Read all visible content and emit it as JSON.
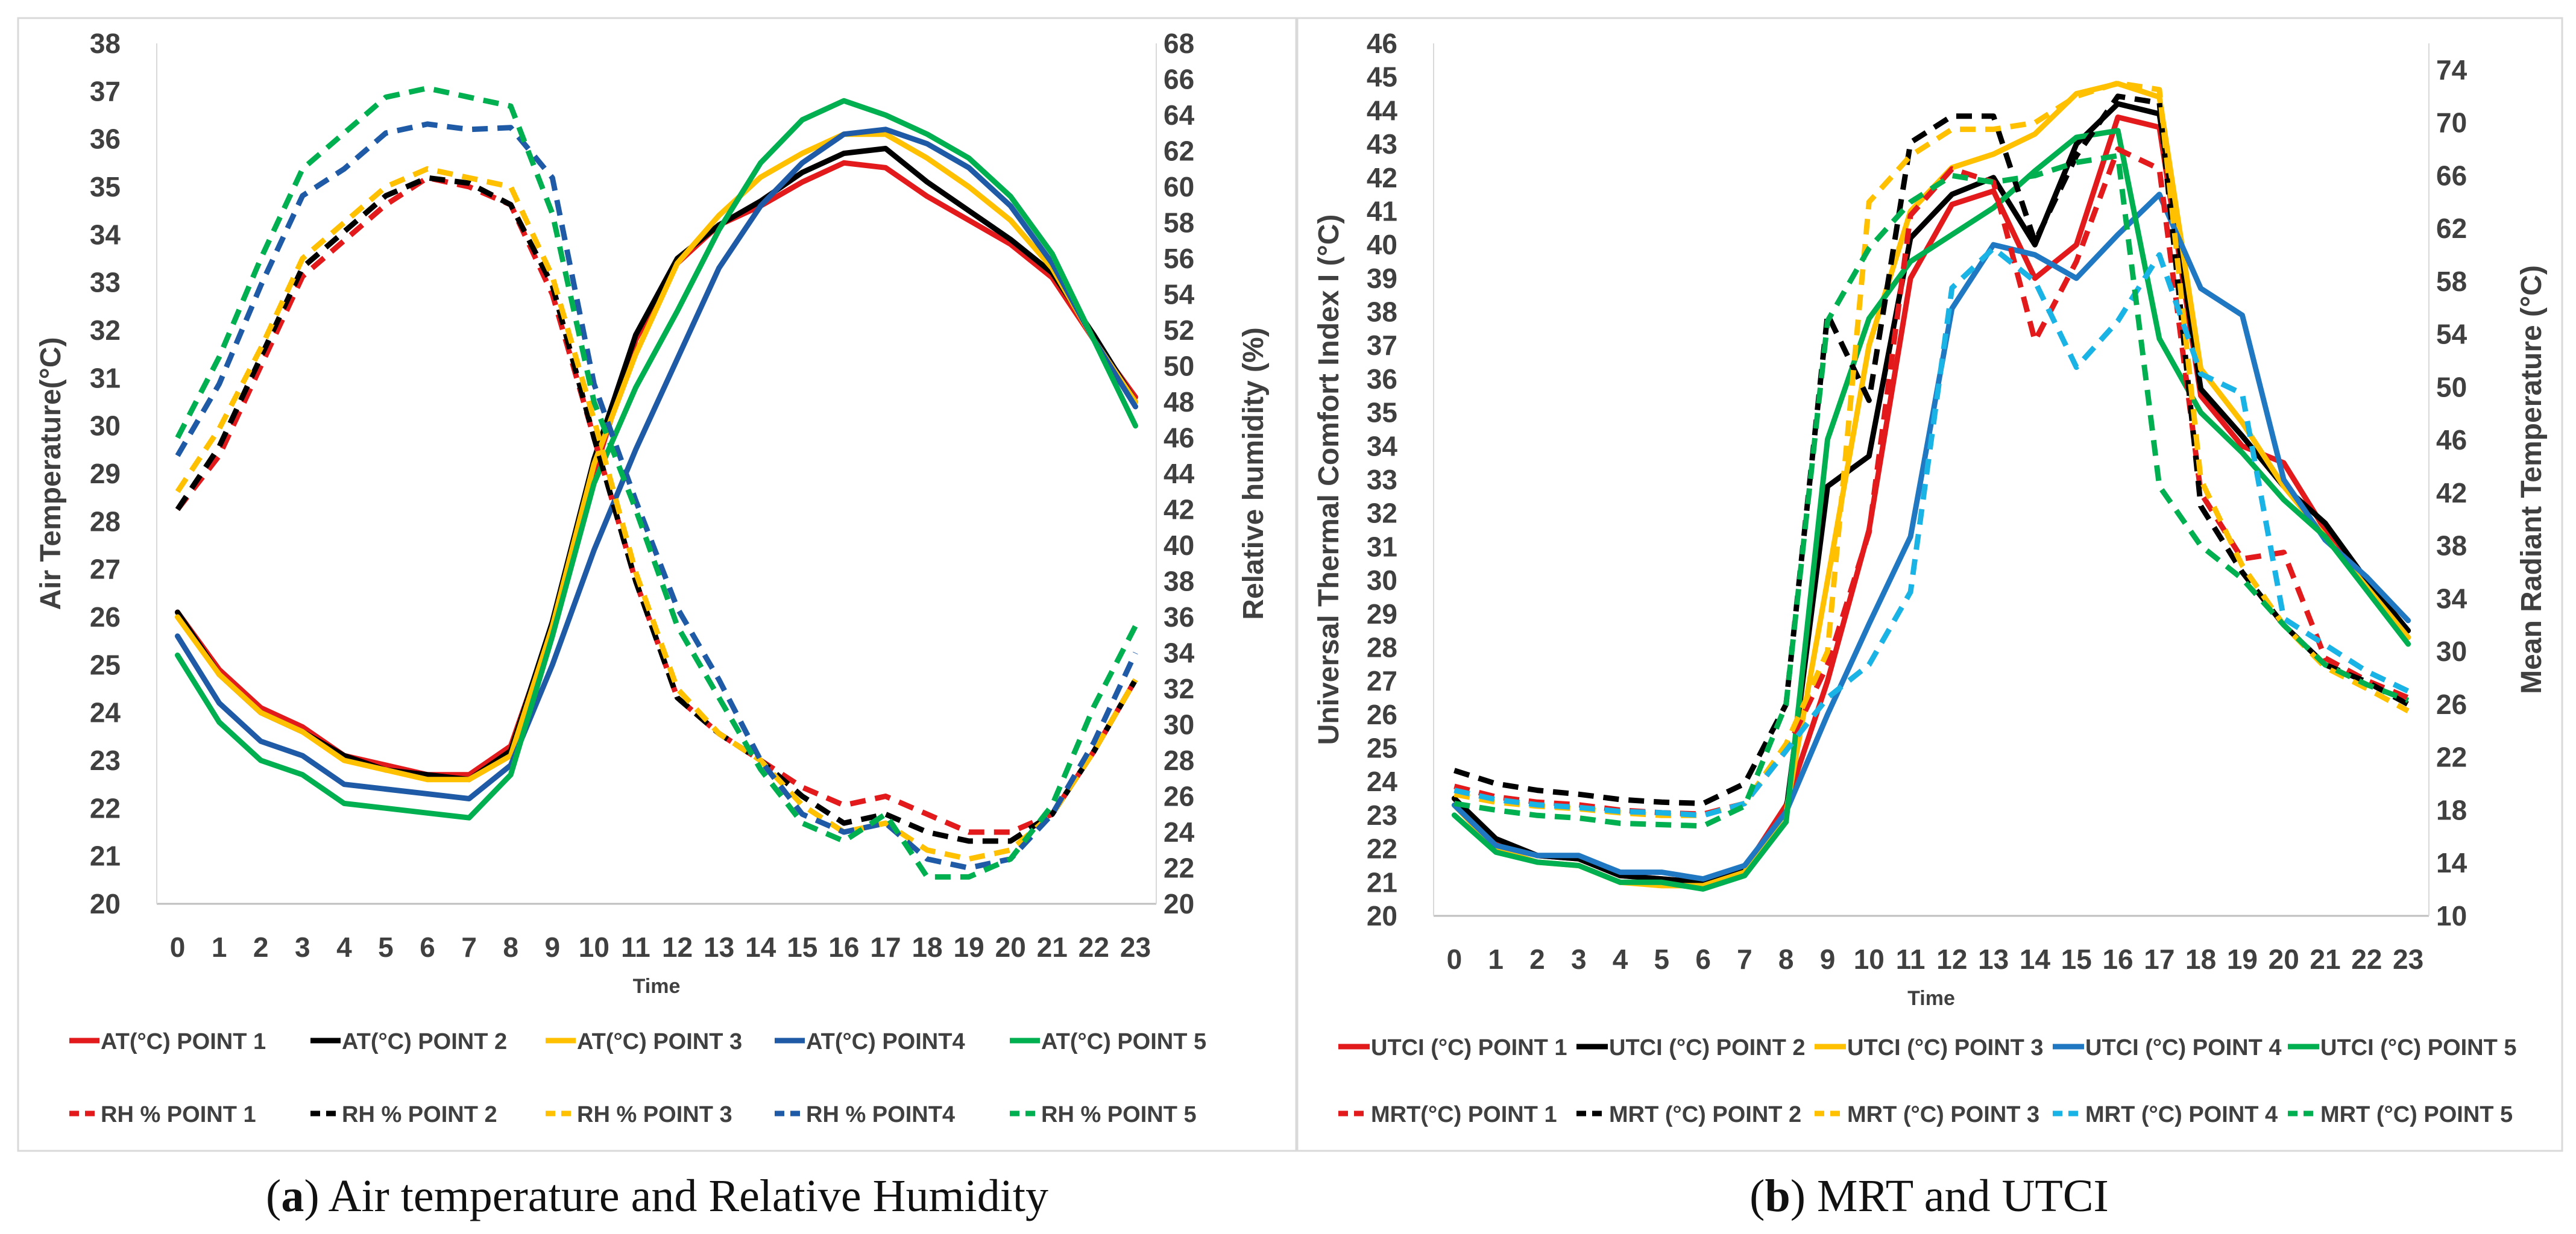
{
  "chart_data": [
    {
      "type": "line",
      "caption_letter": "a",
      "caption_text": " Air temperature and Relative Humidity",
      "xlabel": "Time",
      "ylabel": "Air Temperature(°C)",
      "y2label": "Relative humidity (%)",
      "x": [
        0,
        1,
        2,
        3,
        4,
        5,
        6,
        7,
        8,
        9,
        10,
        11,
        12,
        13,
        14,
        15,
        16,
        17,
        18,
        19,
        20,
        21,
        22,
        23
      ],
      "ylim": [
        20,
        38
      ],
      "y_ticks": [
        20,
        21,
        22,
        23,
        24,
        25,
        26,
        27,
        28,
        29,
        30,
        31,
        32,
        33,
        34,
        35,
        36,
        37,
        38
      ],
      "y2lim": [
        20,
        68
      ],
      "y2_ticks": [
        20,
        22,
        24,
        26,
        28,
        30,
        32,
        34,
        36,
        38,
        40,
        42,
        44,
        46,
        48,
        50,
        52,
        54,
        56,
        58,
        60,
        62,
        64,
        66,
        68
      ],
      "series": [
        {
          "name": "AT(°C) POINT 1",
          "axis": "y",
          "style": "solid",
          "color": "#e31a1c",
          "values": [
            26.1,
            24.9,
            24.1,
            23.7,
            23.1,
            22.9,
            22.7,
            22.7,
            23.3,
            25.8,
            29.0,
            31.8,
            33.4,
            34.2,
            34.6,
            35.1,
            35.5,
            35.4,
            34.8,
            34.3,
            33.8,
            33.1,
            31.8,
            30.6
          ]
        },
        {
          "name": "AT(°C) POINT 2",
          "axis": "y",
          "style": "solid",
          "color": "#000000",
          "values": [
            26.1,
            24.8,
            24.0,
            23.6,
            23.1,
            22.8,
            22.7,
            22.6,
            23.2,
            25.9,
            29.3,
            31.9,
            33.5,
            34.2,
            34.7,
            35.3,
            35.7,
            35.8,
            35.1,
            34.5,
            33.9,
            33.2,
            31.9,
            30.5
          ]
        },
        {
          "name": "AT(°C) POINT 3",
          "axis": "y",
          "style": "solid",
          "color": "#ffc000",
          "values": [
            26.0,
            24.8,
            24.0,
            23.6,
            23.0,
            22.8,
            22.6,
            22.6,
            23.1,
            25.8,
            29.2,
            31.5,
            33.4,
            34.4,
            35.2,
            35.7,
            36.1,
            36.1,
            35.6,
            35.0,
            34.3,
            33.3,
            31.8,
            30.5
          ]
        },
        {
          "name": "AT(°C) POINT4",
          "axis": "y",
          "style": "solid",
          "color": "#1f5aa6",
          "values": [
            25.6,
            24.2,
            23.4,
            23.1,
            22.5,
            22.4,
            22.3,
            22.2,
            22.9,
            25.0,
            27.4,
            29.5,
            31.4,
            33.3,
            34.6,
            35.5,
            36.1,
            36.2,
            35.9,
            35.4,
            34.6,
            33.4,
            31.8,
            30.4
          ]
        },
        {
          "name": "AT(°C) POINT 5",
          "axis": "y",
          "style": "solid",
          "color": "#00b050",
          "values": [
            25.2,
            23.8,
            23.0,
            22.7,
            22.1,
            22.0,
            21.9,
            21.8,
            22.7,
            25.6,
            28.8,
            30.8,
            32.4,
            34.1,
            35.5,
            36.4,
            36.8,
            36.5,
            36.1,
            35.6,
            34.8,
            33.6,
            31.8,
            30.0
          ]
        },
        {
          "name": "RH % POINT 1",
          "axis": "y2",
          "style": "dashed",
          "color": "#e31a1c",
          "values": [
            42.0,
            45.0,
            50.0,
            55.0,
            57.0,
            59.0,
            60.5,
            60.0,
            59.0,
            54.0,
            46.0,
            38.0,
            31.5,
            29.5,
            28.0,
            26.5,
            25.5,
            26.0,
            25.0,
            24.0,
            24.0,
            25.0,
            28.5,
            32.5
          ]
        },
        {
          "name": "RH % POINT 2",
          "axis": "y2",
          "style": "dashed",
          "color": "#000000",
          "values": [
            42.0,
            45.5,
            50.5,
            55.5,
            57.5,
            59.5,
            60.5,
            60.2,
            59.0,
            54.5,
            46.0,
            38.0,
            31.5,
            29.5,
            28.0,
            26.0,
            24.5,
            25.0,
            24.0,
            23.5,
            23.5,
            25.0,
            28.5,
            32.5
          ]
        },
        {
          "name": "RH % POINT 3",
          "axis": "y2",
          "style": "dashed",
          "color": "#ffc000",
          "values": [
            43.0,
            46.5,
            51.0,
            56.0,
            58.0,
            60.0,
            61.0,
            60.5,
            60.0,
            55.0,
            47.0,
            38.5,
            32.0,
            29.5,
            28.0,
            25.5,
            24.0,
            24.5,
            23.0,
            22.5,
            23.0,
            25.0,
            28.5,
            32.5
          ]
        },
        {
          "name": "RH % POINT4",
          "axis": "y2",
          "style": "dashed",
          "color": "#1f5aa6",
          "values": [
            45.0,
            49.0,
            54.5,
            59.5,
            61.0,
            63.0,
            63.5,
            63.2,
            63.3,
            60.5,
            49.0,
            42.5,
            36.5,
            32.5,
            28.0,
            25.0,
            24.0,
            24.5,
            22.5,
            22.0,
            22.5,
            25.0,
            29.0,
            34.0
          ]
        },
        {
          "name": "RH % POINT 5",
          "axis": "y2",
          "style": "dashed",
          "color": "#00b050",
          "values": [
            46.0,
            50.5,
            56.0,
            61.0,
            63.0,
            65.0,
            65.5,
            65.0,
            64.5,
            58.5,
            48.0,
            42.0,
            35.5,
            31.5,
            27.5,
            24.5,
            23.5,
            25.0,
            21.5,
            21.5,
            22.5,
            25.5,
            31.0,
            35.5
          ]
        }
      ]
    },
    {
      "type": "line",
      "caption_letter": "b",
      "caption_text": " MRT and UTCI",
      "xlabel": "Time",
      "ylabel": "Universal Thermal Comfort Index I (°C)",
      "y2label": "Mean Radiant Temperature (°C)",
      "x": [
        0,
        1,
        2,
        3,
        4,
        5,
        6,
        7,
        8,
        9,
        10,
        11,
        12,
        13,
        14,
        15,
        16,
        17,
        18,
        19,
        20,
        21,
        22,
        23
      ],
      "ylim": [
        20,
        46
      ],
      "y_ticks": [
        20,
        21,
        22,
        23,
        24,
        25,
        26,
        27,
        28,
        29,
        30,
        31,
        32,
        33,
        34,
        35,
        36,
        37,
        38,
        39,
        40,
        41,
        42,
        43,
        44,
        45,
        46
      ],
      "y2lim": [
        10,
        76
      ],
      "y2_ticks": [
        10,
        14,
        18,
        22,
        26,
        30,
        34,
        38,
        42,
        46,
        50,
        54,
        58,
        62,
        66,
        70,
        74
      ],
      "series": [
        {
          "name": "UTCI (°C) POINT 1",
          "axis": "y",
          "style": "solid",
          "color": "#e31a1c",
          "values": [
            23.5,
            22.2,
            21.8,
            21.7,
            21.2,
            21.1,
            21.0,
            21.4,
            23.3,
            27.0,
            31.5,
            39.0,
            41.2,
            41.6,
            39.0,
            40.0,
            43.8,
            43.5,
            35.5,
            34.0,
            33.5,
            31.5,
            29.8,
            28.3
          ]
        },
        {
          "name": "UTCI  (°C) POINT 2",
          "axis": "y",
          "style": "solid",
          "color": "#000000",
          "values": [
            23.5,
            22.3,
            21.8,
            21.7,
            21.2,
            21.1,
            21.0,
            21.4,
            23.1,
            32.8,
            33.7,
            40.2,
            41.5,
            42.0,
            40.0,
            43.0,
            44.2,
            43.9,
            35.7,
            34.3,
            32.8,
            31.7,
            30.0,
            28.5
          ]
        },
        {
          "name": "UTCI  (°C) POINT 3",
          "axis": "y",
          "style": "solid",
          "color": "#ffc000",
          "values": [
            23.3,
            22.0,
            21.6,
            21.5,
            21.0,
            20.9,
            20.9,
            21.3,
            23.1,
            30.0,
            37.0,
            41.0,
            42.3,
            42.7,
            43.3,
            44.5,
            44.8,
            44.4,
            36.3,
            34.7,
            32.8,
            31.3,
            29.8,
            28.3
          ]
        },
        {
          "name": "UTCI  (°C) POINT 4",
          "axis": "y",
          "style": "solid",
          "color": "#1f78c1",
          "values": [
            23.3,
            22.1,
            21.8,
            21.8,
            21.3,
            21.3,
            21.1,
            21.5,
            23.1,
            26.0,
            28.7,
            31.3,
            38.1,
            40.0,
            39.7,
            39.0,
            40.3,
            41.5,
            38.7,
            37.9,
            33.0,
            31.2,
            30.1,
            28.8
          ]
        },
        {
          "name": "UTCI  (°C) POINT 5",
          "axis": "y",
          "style": "solid",
          "color": "#00b050",
          "values": [
            23.0,
            21.9,
            21.6,
            21.5,
            21.0,
            21.0,
            20.8,
            21.2,
            22.8,
            34.2,
            37.8,
            39.5,
            40.3,
            41.1,
            42.2,
            43.2,
            43.4,
            37.2,
            35.0,
            33.8,
            32.4,
            31.3,
            29.7,
            28.1
          ]
        },
        {
          "name": "MRT(°C) POINT 1",
          "axis": "y2",
          "style": "dashed",
          "color": "#e31a1c",
          "values": [
            19.8,
            19.0,
            18.6,
            18.4,
            18.0,
            17.8,
            17.7,
            18.5,
            22.5,
            29.0,
            39.0,
            63.0,
            66.5,
            65.5,
            53.5,
            59.5,
            68.0,
            66.5,
            42.0,
            37.0,
            37.5,
            29.5,
            27.8,
            26.5
          ]
        },
        {
          "name": "MRT (°C) POINT 2",
          "axis": "y2",
          "style": "dashed",
          "color": "#000000",
          "values": [
            21.0,
            20.0,
            19.5,
            19.2,
            18.8,
            18.6,
            18.5,
            20.0,
            26.0,
            55.5,
            49.0,
            68.5,
            70.5,
            70.5,
            61.0,
            67.5,
            72.0,
            71.5,
            41.0,
            36.0,
            32.0,
            29.0,
            27.7,
            26.0
          ]
        },
        {
          "name": "MRT (°C) POINT 3",
          "axis": "y2",
          "style": "dashed",
          "color": "#ffc000",
          "values": [
            19.2,
            18.6,
            18.3,
            18.1,
            17.8,
            17.6,
            17.6,
            18.5,
            23.0,
            30.0,
            64.0,
            67.5,
            69.5,
            69.5,
            70.0,
            72.0,
            73.0,
            72.5,
            43.0,
            36.5,
            32.0,
            28.8,
            27.2,
            25.5
          ]
        },
        {
          "name": "MRT (°C) POINT 4",
          "axis": "y2",
          "style": "dashed",
          "color": "#19b3e6",
          "values": [
            19.5,
            18.8,
            18.4,
            18.2,
            17.9,
            17.8,
            17.6,
            18.5,
            22.5,
            26.5,
            29.0,
            34.5,
            57.5,
            60.5,
            58.0,
            51.5,
            55.0,
            60.0,
            51.0,
            49.5,
            32.5,
            30.5,
            28.5,
            27.0
          ]
        },
        {
          "name": "MRT (°C) POINT 5",
          "axis": "y2",
          "style": "dashed",
          "color": "#00b050",
          "values": [
            18.5,
            18.0,
            17.6,
            17.4,
            17.0,
            16.9,
            16.8,
            18.3,
            26.0,
            55.0,
            60.5,
            64.0,
            66.0,
            65.5,
            66.0,
            67.0,
            67.5,
            42.5,
            38.0,
            35.5,
            32.0,
            29.0,
            27.5,
            26.3
          ]
        }
      ]
    }
  ]
}
